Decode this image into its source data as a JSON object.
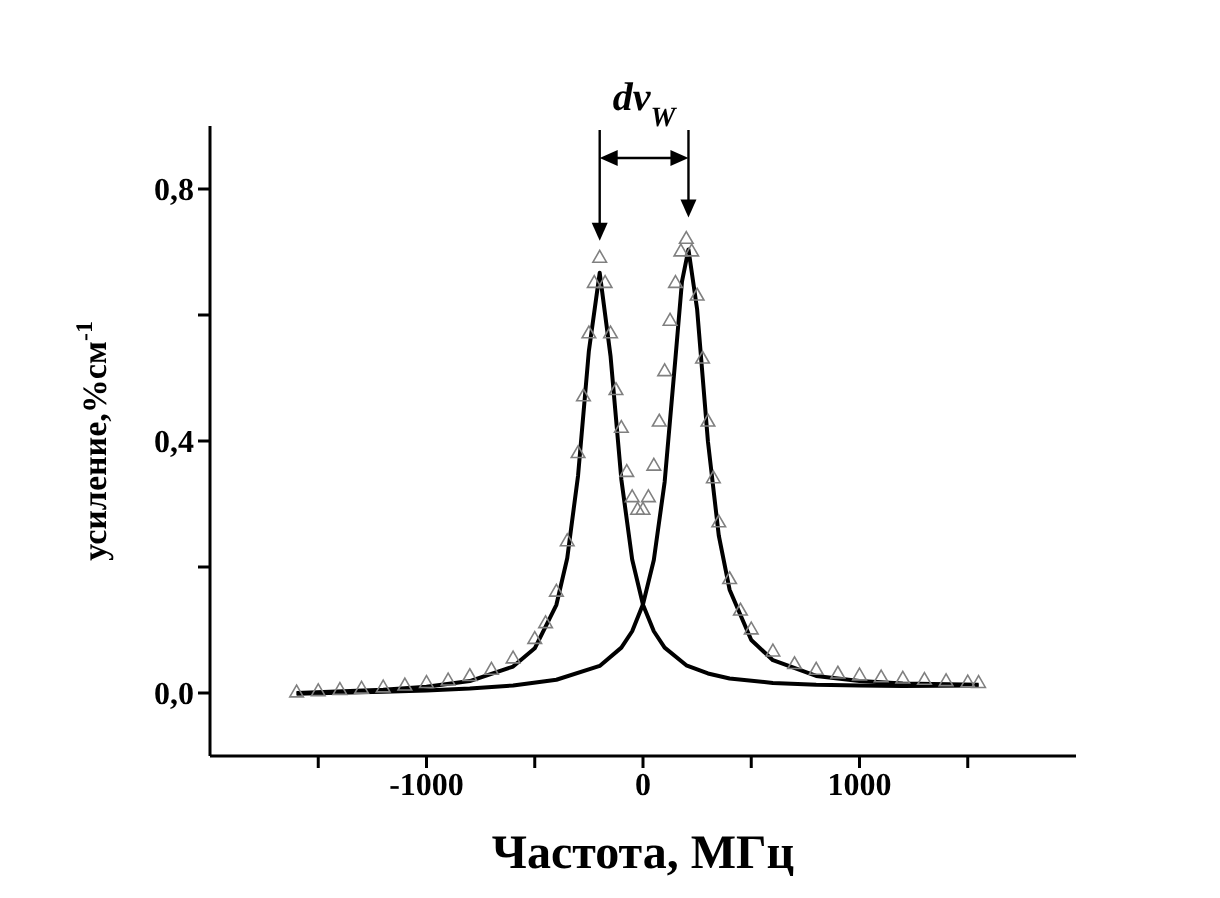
{
  "chart_data": {
    "type": "line",
    "xlabel": "Частота, МГц",
    "ylabel": "усиление,%см$^{-1}$",
    "annotations": [
      "dν$_{W}$"
    ],
    "xlim": [
      -2000,
      2000
    ],
    "xticks": [
      {
        "value": -1500,
        "label": null
      },
      -1000,
      {
        "value": -500,
        "label": null
      },
      0,
      {
        "value": 500,
        "label": null
      },
      1000,
      {
        "value": 1500,
        "label": null
      }
    ],
    "ylim": [
      -0.1,
      0.9
    ],
    "yticks": [
      {
        "value": 0,
        "label": "0,0"
      },
      {
        "value": 0.2,
        "label": null
      },
      {
        "value": 0.4,
        "label": "0,4"
      },
      {
        "value": 0.6,
        "label": null
      },
      {
        "value": 0.8,
        "label": "0,8"
      }
    ],
    "series": [
      {
        "type": "scatter",
        "marker": "triangle",
        "color": "#808080",
        "x": [
          -1600,
          -1500,
          -1400,
          -1300,
          -1200,
          -1100,
          -1000,
          -900,
          -800,
          -700,
          -600,
          -500,
          -450,
          -400,
          -350,
          -300,
          -275,
          -250,
          -225,
          -200,
          -175,
          -150,
          -125,
          -100,
          -75,
          -50,
          -25,
          0,
          25,
          50,
          75,
          100,
          125,
          150,
          175,
          200,
          225,
          250,
          275,
          300,
          325,
          350,
          400,
          450,
          500,
          600,
          700,
          800,
          900,
          1000,
          1100,
          1200,
          1300,
          1400,
          1500,
          1550
        ],
        "values": [
          0.0,
          0.002,
          0.004,
          0.006,
          0.008,
          0.011,
          0.015,
          0.019,
          0.026,
          0.036,
          0.054,
          0.085,
          0.11,
          0.16,
          0.24,
          0.38,
          0.47,
          0.57,
          0.65,
          0.69,
          0.65,
          0.57,
          0.48,
          0.42,
          0.35,
          0.31,
          0.29,
          0.29,
          0.31,
          0.36,
          0.43,
          0.51,
          0.59,
          0.65,
          0.7,
          0.72,
          0.7,
          0.63,
          0.53,
          0.43,
          0.34,
          0.27,
          0.18,
          0.13,
          0.1,
          0.065,
          0.045,
          0.036,
          0.03,
          0.027,
          0.024,
          0.022,
          0.02,
          0.018,
          0.016,
          0.015
        ]
      },
      {
        "marker": "none",
        "color": "#000000",
        "x": [
          -1600,
          -1200,
          -1000,
          -800,
          -600,
          -500,
          -400,
          -350,
          -300,
          -250,
          -200,
          -150,
          -100,
          -50,
          0,
          50,
          100,
          200,
          300,
          400,
          600,
          800,
          1000,
          1200,
          1550
        ],
        "values": [
          0.0,
          0.005,
          0.01,
          0.019,
          0.042,
          0.071,
          0.14,
          0.214,
          0.345,
          0.543,
          0.667,
          0.535,
          0.339,
          0.212,
          0.14,
          0.098,
          0.072,
          0.044,
          0.031,
          0.023,
          0.016,
          0.013,
          0.012,
          0.011,
          0.012
        ]
      },
      {
        "marker": "none",
        "color": "#000000",
        "x": [
          -1600,
          -1200,
          -1000,
          -800,
          -600,
          -400,
          -200,
          -100,
          -50,
          0,
          50,
          100,
          150,
          180,
          210,
          250,
          300,
          350,
          400,
          500,
          600,
          800,
          1000,
          1200,
          1550
        ],
        "values": [
          -0.001,
          0.002,
          0.004,
          0.007,
          0.012,
          0.021,
          0.043,
          0.072,
          0.098,
          0.141,
          0.211,
          0.335,
          0.532,
          0.653,
          0.704,
          0.609,
          0.399,
          0.25,
          0.164,
          0.084,
          0.052,
          0.027,
          0.019,
          0.015,
          0.013
        ]
      }
    ]
  }
}
